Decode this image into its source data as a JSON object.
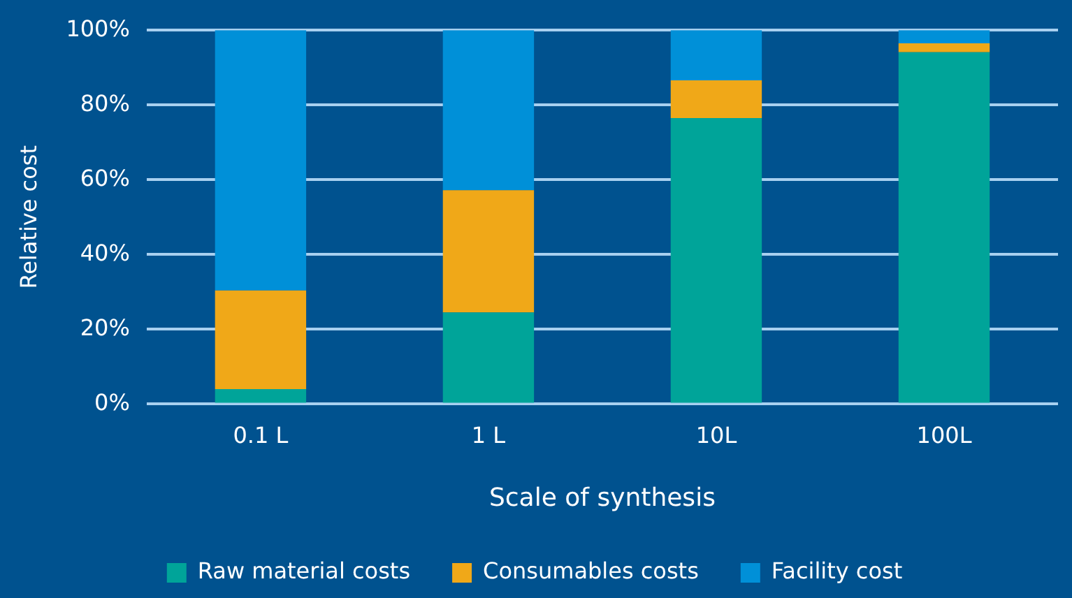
{
  "chart_data": {
    "type": "bar",
    "stacked": true,
    "xlabel": "Scale of synthesis",
    "ylabel": "Relative cost",
    "categories": [
      "0.1 L",
      "1 L",
      "10L",
      "100L"
    ],
    "series": [
      {
        "name": "Raw material costs",
        "color": "#00a499",
        "values": [
          4.0,
          24.5,
          76.5,
          94.1
        ]
      },
      {
        "name": "Consumables costs",
        "color": "#f0a818",
        "values": [
          26.4,
          32.7,
          10.1,
          2.4
        ]
      },
      {
        "name": "Facility cost",
        "color": "#0090d8",
        "values": [
          69.6,
          42.8,
          13.4,
          3.5
        ]
      }
    ],
    "ylim": [
      0,
      100
    ],
    "yticks": [
      {
        "value": 0,
        "label": "0%"
      },
      {
        "value": 20,
        "label": "20%"
      },
      {
        "value": 40,
        "label": "40%"
      },
      {
        "value": 60,
        "label": "60%"
      },
      {
        "value": 80,
        "label": "80%"
      },
      {
        "value": 100,
        "label": "100%"
      }
    ],
    "grid": "y",
    "legend": "bottom"
  }
}
